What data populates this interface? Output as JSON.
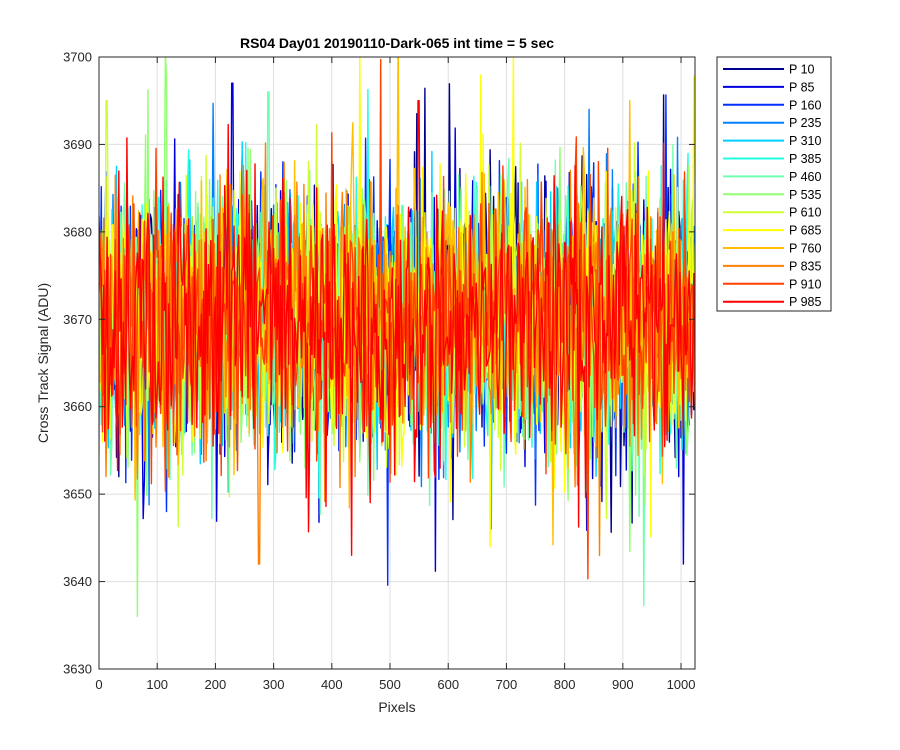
{
  "chart_data": {
    "type": "line",
    "title": "RS04 Day01 20190110-Dark-065 int time = 5 sec",
    "xlabel": "Pixels",
    "ylabel": "Cross Track Signal (ADU)",
    "xlim": [
      0,
      1024
    ],
    "ylim": [
      3630,
      3700
    ],
    "xticks": [
      0,
      100,
      200,
      300,
      400,
      500,
      600,
      700,
      800,
      900,
      1000
    ],
    "yticks": [
      3630,
      3640,
      3650,
      3660,
      3670,
      3680,
      3690,
      3700
    ],
    "grid": true,
    "legend_position": "outside-top-right",
    "noise_model": {
      "mean": 3670,
      "typical_range": [
        3650,
        3690
      ],
      "std": 7.5
    },
    "series": [
      {
        "name": "P 10",
        "color": "#00008f"
      },
      {
        "name": "P 85",
        "color": "#0000df"
      },
      {
        "name": "P 160",
        "color": "#0030ff"
      },
      {
        "name": "P 235",
        "color": "#0080ff"
      },
      {
        "name": "P 310",
        "color": "#00cfff"
      },
      {
        "name": "P 385",
        "color": "#20ffdf"
      },
      {
        "name": "P 460",
        "color": "#70ffaf"
      },
      {
        "name": "P 535",
        "color": "#90ff70"
      },
      {
        "name": "P 610",
        "color": "#cfff30"
      },
      {
        "name": "P 685",
        "color": "#ffff00"
      },
      {
        "name": "P 760",
        "color": "#ffbf00"
      },
      {
        "name": "P 835",
        "color": "#ff8000"
      },
      {
        "name": "P 910",
        "color": "#ff4000"
      },
      {
        "name": "P 985",
        "color": "#ff0000"
      }
    ],
    "notable_spikes": [
      {
        "series": "P 85",
        "x": 229,
        "y": 3697
      },
      {
        "series": "P 535",
        "x": 66,
        "y": 3636
      },
      {
        "series": "P 835",
        "x": 275,
        "y": 3642
      },
      {
        "series": "P 985",
        "x": 434,
        "y": 3643
      },
      {
        "series": "P 985",
        "x": 549,
        "y": 3695
      },
      {
        "series": "P 610",
        "x": 13,
        "y": 3695
      },
      {
        "series": "P 460",
        "x": 291,
        "y": 3696
      },
      {
        "series": "P 760",
        "x": 912,
        "y": 3695
      },
      {
        "series": "P 85",
        "x": 1004,
        "y": 3642
      },
      {
        "series": "P 685",
        "x": 672,
        "y": 3644
      }
    ]
  }
}
